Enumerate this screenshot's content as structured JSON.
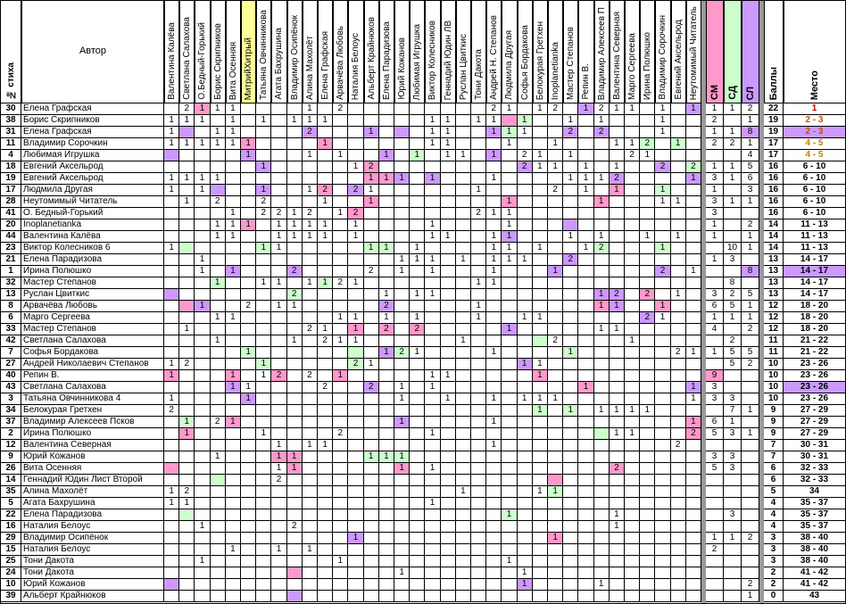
{
  "header": {
    "num_label": "№ стиха",
    "author_label": "Автор",
    "score_label": "Баллы",
    "place_label": "Место"
  },
  "juror_columns": [
    {
      "name": "Валентина Калёва"
    },
    {
      "name": "Светлана Салахова"
    },
    {
      "name": "О.Бедный-Горький"
    },
    {
      "name": "Борис Скрипников"
    },
    {
      "name": "Вита Осенняя"
    },
    {
      "name": "МитрийХитрый",
      "highlight": "#ffff99"
    },
    {
      "name": "Татьяна Овчинникова"
    },
    {
      "name": "Агата Бахрушина"
    },
    {
      "name": "Владимир Осипёнок"
    },
    {
      "name": "Алина Махолёт"
    },
    {
      "name": "Елена Графская"
    },
    {
      "name": "Арвачёва Любовь"
    },
    {
      "name": "Наталия Белоус"
    },
    {
      "name": "Альберт Крайнюков"
    },
    {
      "name": "Елена Парадизова"
    },
    {
      "name": "Юрий Кожанов"
    },
    {
      "name": "Любимая Игрушка"
    },
    {
      "name": "Виктор Колесников"
    },
    {
      "name": "Геннадий Юдин ЛВ"
    },
    {
      "name": "Руслан Цвиткис"
    },
    {
      "name": "Тони Дакота"
    },
    {
      "name": "Андрей Н. Степанов"
    },
    {
      "name": "Людмила Другая"
    },
    {
      "name": "Софья Бордакова"
    },
    {
      "name": "Белокурая Гретхен"
    },
    {
      "name": "Inoplanetianka"
    },
    {
      "name": "Мастер Степанов"
    },
    {
      "name": "Репин В."
    },
    {
      "name": "Владимир Алексеев П"
    },
    {
      "name": "Валентина Северная"
    },
    {
      "name": "Марго Сергеева"
    },
    {
      "name": "Ирина Полюшко"
    },
    {
      "name": "Владимир Сорочкин"
    },
    {
      "name": "Евгений Аксельрод"
    },
    {
      "name": "Неутомимый Читатель"
    }
  ],
  "award_columns": [
    {
      "name": "СМ",
      "color": "#ff99cc"
    },
    {
      "name": "СД",
      "color": "#ccffcc"
    },
    {
      "name": "СЛ",
      "color": "#cc99ff"
    }
  ],
  "colors": {
    "pink": "#ff99cc",
    "green": "#ccffcc",
    "purple": "#cc99ff",
    "yellow": "#ffff99",
    "place_top1": "#c00000",
    "place_top2": "#c05000",
    "place_top3": "#c08000",
    "place_highlight": "#cc99ff"
  },
  "rows": [
    {
      "num": "30",
      "author": "Елена Графская",
      "cells": {
        "1": "2",
        "2": "1",
        "3": "1",
        "4": "1",
        "9": "1",
        "11": "2",
        "21": "2",
        "22": "1",
        "24": "1",
        "25": "2",
        "27": "1",
        "28": "2",
        "29": "1",
        "30": "1",
        "32": "1",
        "34": "1",
        "35": "1",
        "36": "1",
        "37": "2"
      },
      "fills": {
        "2": "pink",
        "27": "purple",
        "34": "purple"
      },
      "score": "22",
      "place": "1"
    },
    {
      "num": "38",
      "author": "Борис Скрипников",
      "cells": {
        "0": "1",
        "1": "1",
        "2": "1",
        "4": "1",
        "6": "1",
        "8": "1",
        "9": "1",
        "10": "1",
        "17": "1",
        "18": "1",
        "20": "1",
        "21": "1",
        "23": "1",
        "26": "1",
        "28": "1",
        "32": "1",
        "35": "2",
        "37": "1"
      },
      "fills": {
        "22": "pink",
        "23": "green"
      },
      "score": "19",
      "place": "2 - 3"
    },
    {
      "num": "31",
      "author": "Елена Графская",
      "cells": {
        "0": "1",
        "3": "1",
        "4": "1",
        "9": "2",
        "13": "1",
        "17": "1",
        "18": "1",
        "21": "1",
        "22": "1",
        "23": "1",
        "26": "2",
        "28": "2",
        "32": "1",
        "35": "1",
        "36": "1",
        "37": "8"
      },
      "fills": {
        "1": "purple",
        "9": "purple",
        "13": "purple",
        "15": "purple",
        "21": "purple",
        "22": "green",
        "26": "purple",
        "28": "purple",
        "37": "purple"
      },
      "score": "19",
      "place": "2 - 3"
    },
    {
      "num": "11",
      "author": "Владимир Сорочкин",
      "cells": {
        "0": "1",
        "1": "1",
        "2": "1",
        "3": "1",
        "4": "1",
        "5": "1",
        "10": "1",
        "17": "1",
        "18": "1",
        "22": "1",
        "25": "1",
        "29": "1",
        "30": "1",
        "31": "2",
        "33": "1",
        "35": "2",
        "36": "2",
        "37": "1"
      },
      "fills": {
        "5": "pink",
        "10": "pink",
        "31": "green",
        "33": "green"
      },
      "score": "17",
      "place": "4 - 5"
    },
    {
      "num": "4",
      "author": "Любимая Игрушка",
      "cells": {
        "5": "1",
        "9": "1",
        "11": "1",
        "14": "1",
        "16": "1",
        "18": "1",
        "19": "1",
        "21": "1",
        "23": "2",
        "24": "1",
        "26": "1",
        "30": "2",
        "31": "1",
        "37": "4"
      },
      "fills": {
        "0": "purple",
        "5": "purple",
        "14": "purple",
        "16": "green",
        "21": "purple"
      },
      "score": "17",
      "place": "4 - 5"
    },
    {
      "num": "18",
      "author": "Евгений Аксельрод",
      "cells": {
        "6": "1",
        "12": "1",
        "13": "2",
        "23": "2",
        "24": "1",
        "25": "1",
        "27": "1",
        "29": "1",
        "32": "2",
        "34": "2",
        "35": "1",
        "36": "1",
        "37": "5"
      },
      "fills": {
        "6": "purple",
        "13": "pink",
        "23": "purple",
        "32": "purple",
        "34": "green"
      },
      "score": "16",
      "place": "6 - 10"
    },
    {
      "num": "19",
      "author": "Евгений Аксельрод",
      "cells": {
        "0": "1",
        "1": "1",
        "2": "1",
        "3": "1",
        "13": "1",
        "14": "1",
        "15": "1",
        "17": "1",
        "21": "1",
        "26": "1",
        "27": "1",
        "28": "1",
        "29": "2",
        "34": "1",
        "35": "3",
        "36": "1",
        "37": "6"
      },
      "fills": {
        "13": "pink",
        "14": "pink",
        "15": "purple",
        "17": "purple",
        "29": "purple",
        "34": "purple"
      },
      "score": "16",
      "place": "6 - 10"
    },
    {
      "num": "17",
      "author": "Людмила Другая",
      "cells": {
        "0": "1",
        "2": "1",
        "6": "1",
        "9": "1",
        "10": "2",
        "12": "2",
        "13": "1",
        "20": "1",
        "25": "2",
        "27": "1",
        "29": "1",
        "32": "1",
        "35": "1",
        "37": "3"
      },
      "fills": {
        "3": "purple",
        "6": "purple",
        "10": "pink",
        "12": "purple",
        "29": "pink",
        "32": "green"
      },
      "score": "16",
      "place": "6 - 10"
    },
    {
      "num": "28",
      "author": "Неутомимый Читатель",
      "cells": {
        "1": "1",
        "3": "2",
        "6": "2",
        "10": "1",
        "13": "1",
        "22": "1",
        "28": "1",
        "32": "1",
        "33": "1",
        "35": "3",
        "36": "1",
        "37": "1"
      },
      "fills": {
        "13": "pink",
        "22": "pink",
        "28": "pink"
      },
      "score": "16",
      "place": "6 - 10"
    },
    {
      "num": "41",
      "author": "О. Бедный-Горький",
      "cells": {
        "4": "1",
        "6": "2",
        "7": "2",
        "8": "1",
        "9": "2",
        "11": "1",
        "12": "2",
        "20": "2",
        "21": "1",
        "22": "1",
        "35": "3"
      },
      "fills": {
        "12": "pink"
      },
      "score": "16",
      "place": "6 - 10"
    },
    {
      "num": "20",
      "author": "Inoplanetianka",
      "cells": {
        "3": "1",
        "4": "1",
        "5": "1",
        "7": "1",
        "8": "1",
        "9": "1",
        "10": "1",
        "12": "1",
        "17": "1",
        "22": "1",
        "35": "1",
        "37": "2"
      },
      "fills": {
        "5": "pink",
        "26": "purple"
      },
      "score": "14",
      "place": "11 - 13"
    },
    {
      "num": "44",
      "author": "Валентина Калёва",
      "cells": {
        "3": "1",
        "4": "1",
        "7": "1",
        "8": "1",
        "9": "1",
        "10": "1",
        "12": "1",
        "17": "1",
        "18": "1",
        "21": "1",
        "22": "1",
        "26": "1",
        "28": "1",
        "31": "1",
        "33": "1",
        "35": "1",
        "37": "1"
      },
      "fills": {
        "22": "purple"
      },
      "score": "14",
      "place": "11 - 13"
    },
    {
      "num": "23",
      "author": "Виктор Колесников 6",
      "cells": {
        "0": "1",
        "6": "1",
        "7": "1",
        "13": "1",
        "14": "1",
        "16": "1",
        "21": "1",
        "22": "1",
        "24": "1",
        "27": "1",
        "28": "2",
        "32": "1",
        "36": "10",
        "37": "1"
      },
      "fills": {
        "1": "green",
        "6": "green",
        "13": "green",
        "14": "green",
        "28": "green",
        "32": "green"
      },
      "score": "14",
      "place": "11 - 13"
    },
    {
      "num": "21",
      "author": "Елена Парадизова",
      "cells": {
        "2": "1",
        "15": "1",
        "16": "1",
        "17": "1",
        "19": "1",
        "21": "1",
        "22": "1",
        "23": "1",
        "26": "2",
        "35": "1",
        "36": "3"
      },
      "fills": {
        "26": "purple"
      },
      "score": "13",
      "place": "14 - 17"
    },
    {
      "num": "1",
      "author": "Ирина Полюшко",
      "cells": {
        "2": "1",
        "4": "1",
        "8": "2",
        "13": "2",
        "15": "1",
        "17": "1",
        "21": "1",
        "25": "1",
        "32": "2",
        "34": "1",
        "37": "8"
      },
      "fills": {
        "4": "purple",
        "8": "purple",
        "25": "purple",
        "32": "purple",
        "37": "purple"
      },
      "score": "13",
      "place": "14 - 17"
    },
    {
      "num": "32",
      "author": "Мастер Степанов",
      "cells": {
        "3": "1",
        "6": "1",
        "7": "1",
        "9": "1",
        "10": "1",
        "11": "2",
        "12": "1",
        "20": "1",
        "21": "1",
        "36": "8"
      },
      "fills": {
        "3": "green",
        "10": "green"
      },
      "score": "13",
      "place": "14 - 17"
    },
    {
      "num": "13",
      "author": "Руслан Цвиткис",
      "cells": {
        "8": "2",
        "14": "1",
        "16": "1",
        "17": "1",
        "28": "1",
        "29": "2",
        "31": "2",
        "33": "1",
        "35": "3",
        "36": "2",
        "37": "5"
      },
      "fills": {
        "0": "purple",
        "8": "green",
        "28": "purple",
        "29": "purple",
        "31": "pink"
      },
      "score": "13",
      "place": "14 - 17"
    },
    {
      "num": "8",
      "author": "Арвачёва Любовь",
      "cells": {
        "2": "1",
        "5": "2",
        "7": "1",
        "8": "1",
        "14": "2",
        "20": "1",
        "28": "1",
        "29": "1",
        "32": "1",
        "35": "6",
        "36": "5",
        "37": "1"
      },
      "fills": {
        "1": "pink",
        "2": "purple",
        "14": "purple",
        "28": "pink",
        "29": "purple",
        "32": "pink"
      },
      "score": "12",
      "place": "18 - 20"
    },
    {
      "num": "6",
      "author": "Марго Сергеева",
      "cells": {
        "3": "1",
        "4": "1",
        "11": "1",
        "12": "1",
        "14": "1",
        "16": "1",
        "20": "1",
        "23": "1",
        "24": "1",
        "31": "2",
        "32": "1",
        "35": "1",
        "36": "1",
        "37": "1"
      },
      "fills": {
        "31": "purple"
      },
      "score": "12",
      "place": "18 - 20"
    },
    {
      "num": "33",
      "author": "Мастер Степанов",
      "cells": {
        "1": "1",
        "9": "2",
        "10": "1",
        "12": "1",
        "14": "2",
        "16": "2",
        "22": "1",
        "28": "1",
        "29": "1",
        "35": "4",
        "37": "2"
      },
      "fills": {
        "12": "pink",
        "14": "pink",
        "16": "pink",
        "22": "purple"
      },
      "score": "12",
      "place": "18 - 20"
    },
    {
      "num": "42",
      "author": "Светлана Салахова",
      "cells": {
        "3": "1",
        "8": "1",
        "10": "2",
        "11": "1",
        "12": "1",
        "19": "1",
        "25": "2",
        "30": "1",
        "36": "2"
      },
      "fills": {
        "24": "green"
      },
      "score": "11",
      "place": "21 - 22"
    },
    {
      "num": "7",
      "author": "Софья Бордакова",
      "cells": {
        "5": "1",
        "14": "1",
        "15": "2",
        "16": "1",
        "21": "1",
        "26": "1",
        "33": "2",
        "34": "1",
        "35": "1",
        "36": "5",
        "37": "5"
      },
      "fills": {
        "5": "green",
        "12": "green",
        "14": "purple",
        "15": "green",
        "26": "green"
      },
      "score": "11",
      "place": "21 - 22"
    },
    {
      "num": "27",
      "author": "Андрей Николаевич Степанов",
      "cells": {
        "0": "1",
        "1": "2",
        "6": "1",
        "12": "2",
        "13": "1",
        "23": "1",
        "24": "1",
        "36": "5",
        "37": "2"
      },
      "fills": {
        "6": "green",
        "12": "green",
        "23": "purple"
      },
      "score": "10",
      "place": "23 - 26"
    },
    {
      "num": "40",
      "author": "Репин В.",
      "cells": {
        "0": "1",
        "4": "1",
        "6": "1",
        "7": "2",
        "9": "2",
        "11": "1",
        "17": "1",
        "18": "1",
        "24": "1",
        "35": "9"
      },
      "fills": {
        "0": "pink",
        "4": "pink",
        "7": "pink",
        "11": "pink",
        "24": "pink",
        "35": "pink"
      },
      "score": "10",
      "place": "23 - 26"
    },
    {
      "num": "43",
      "author": "Светлана Салахова",
      "cells": {
        "4": "1",
        "5": "1",
        "10": "2",
        "13": "2",
        "15": "1",
        "17": "1",
        "27": "1",
        "34": "1",
        "35": "3"
      },
      "fills": {
        "4": "purple",
        "13": "purple",
        "27": "pink",
        "34": "purple"
      },
      "score": "10",
      "place": "23 - 26"
    },
    {
      "num": "3",
      "author": "Татьяна Овчинникова 4",
      "cells": {
        "0": "1",
        "5": "1",
        "15": "1",
        "18": "1",
        "21": "1",
        "23": "1",
        "24": "1",
        "25": "1",
        "34": "1",
        "35": "3",
        "36": "3"
      },
      "fills": {
        "5": "purple"
      },
      "score": "10",
      "place": "23 - 26"
    },
    {
      "num": "34",
      "author": "Белокурая Гретхен",
      "cells": {
        "0": "2",
        "24": "1",
        "26": "1",
        "28": "1",
        "29": "1",
        "30": "1",
        "31": "1",
        "36": "7",
        "37": "1"
      },
      "fills": {
        "24": "green",
        "26": "green"
      },
      "score": "9",
      "place": "27 - 29"
    },
    {
      "num": "37",
      "author": "Владимир Алексеев Псков",
      "cells": {
        "1": "1",
        "3": "2",
        "4": "1",
        "15": "1",
        "21": "1",
        "34": "1",
        "35": "6",
        "36": "1"
      },
      "fills": {
        "1": "green",
        "4": "pink",
        "15": "purple",
        "34": "pink"
      },
      "score": "9",
      "place": "27 - 29"
    },
    {
      "num": "2",
      "author": "Ирина Полюшко",
      "cells": {
        "1": "1",
        "6": "1",
        "11": "2",
        "17": "1",
        "29": "1",
        "30": "1",
        "34": "2",
        "35": "5",
        "36": "3",
        "37": "1"
      },
      "fills": {
        "1": "pink",
        "28": "green",
        "34": "pink"
      },
      "score": "9",
      "place": "27 - 29"
    },
    {
      "num": "12",
      "author": "Валентина Северная",
      "cells": {
        "7": "1",
        "9": "1",
        "10": "1",
        "21": "1",
        "33": "2"
      },
      "fills": {},
      "score": "7",
      "place": "30 - 31"
    },
    {
      "num": "9",
      "author": "Юрий Кожанов",
      "cells": {
        "3": "1",
        "7": "1",
        "8": "1",
        "13": "1",
        "14": "1",
        "15": "1",
        "35": "3",
        "36": "3"
      },
      "fills": {
        "7": "pink",
        "8": "pink",
        "13": "green",
        "14": "green",
        "15": "green"
      },
      "score": "7",
      "place": "30 - 31"
    },
    {
      "num": "26",
      "author": "Вита Осенняя",
      "cells": {
        "7": "1",
        "8": "1",
        "15": "1",
        "17": "1",
        "29": "2",
        "35": "5",
        "36": "3"
      },
      "fills": {
        "0": "pink",
        "8": "pink",
        "15": "pink",
        "29": "pink"
      },
      "score": "6",
      "place": "32 - 33"
    },
    {
      "num": "14",
      "author": "Геннадий Юдин Лист Второй",
      "cells": {
        "7": "2"
      },
      "fills": {
        "3": "green",
        "25": "pink"
      },
      "score": "6",
      "place": "32 - 33"
    },
    {
      "num": "35",
      "author": "Алина Махолёт",
      "cells": {
        "0": "1",
        "1": "2",
        "19": "1",
        "24": "1",
        "25": "1"
      },
      "fills": {
        "25": "green"
      },
      "score": "5",
      "place": "34"
    },
    {
      "num": "5",
      "author": "Агата Бахрушина",
      "cells": {
        "0": "1",
        "1": "1",
        "17": "1"
      },
      "fills": {},
      "score": "4",
      "place": "35 - 37"
    },
    {
      "num": "22",
      "author": "Елена Парадизова",
      "cells": {
        "22": "1",
        "29": "1",
        "36": "3"
      },
      "fills": {
        "1": "green",
        "22": "green"
      },
      "score": "4",
      "place": "35 - 37"
    },
    {
      "num": "16",
      "author": "Наталия Белоус",
      "cells": {
        "2": "1",
        "8": "2",
        "29": "1"
      },
      "fills": {},
      "score": "4",
      "place": "35 - 37"
    },
    {
      "num": "29",
      "author": "Владимир Осипёнок",
      "cells": {
        "12": "1",
        "25": "1",
        "35": "1",
        "36": "1",
        "37": "2"
      },
      "fills": {
        "12": "purple",
        "25": "pink"
      },
      "score": "3",
      "place": "38 - 40"
    },
    {
      "num": "15",
      "author": "Наталия Белоус",
      "cells": {
        "4": "1",
        "7": "1",
        "9": "1",
        "35": "2"
      },
      "fills": {},
      "score": "3",
      "place": "38 - 40"
    },
    {
      "num": "25",
      "author": "Тони Дакота",
      "cells": {
        "2": "1",
        "11": "1",
        "22": "1"
      },
      "fills": {},
      "score": "3",
      "place": "38 - 40"
    },
    {
      "num": "24",
      "author": "Тони Дакота",
      "cells": {
        "15": "1",
        "23": "1"
      },
      "fills": {
        "8": "pink"
      },
      "score": "2",
      "place": "41 - 42"
    },
    {
      "num": "10",
      "author": "Юрий Кожанов",
      "cells": {
        "23": "1",
        "28": "1",
        "37": "2"
      },
      "fills": {
        "0": "purple",
        "23": "purple"
      },
      "score": "2",
      "place": "41 - 42"
    },
    {
      "num": "39",
      "author": "Альберт Крайнюков",
      "cells": {
        "37": "1"
      },
      "fills": {
        "8": "purple"
      },
      "score": "0",
      "place": "43"
    }
  ]
}
